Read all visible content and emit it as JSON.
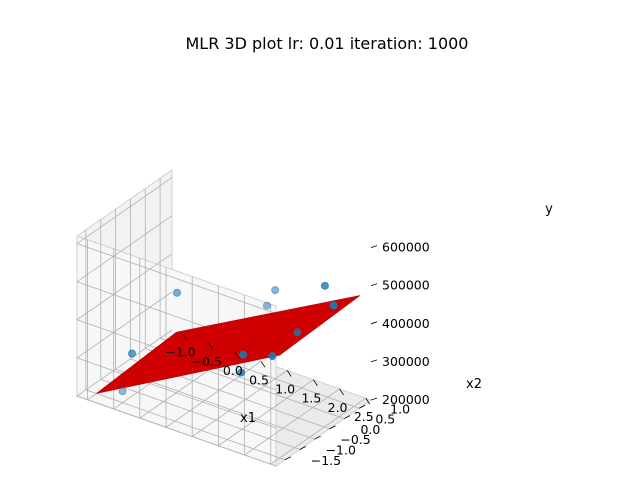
{
  "chart_data": {
    "type": "scatter",
    "title": "MLR 3D plot lr: 0.01 iteration: 1000",
    "xlabel": "x1",
    "ylabel": "x2",
    "zlabel": "y",
    "xlim": [
      -1.2,
      2.6
    ],
    "ylim": [
      -1.8,
      1.4
    ],
    "zlim": [
      200000,
      620000
    ],
    "x_ticks": [
      "−1.0",
      "−0.5",
      "0.0",
      "0.5",
      "1.0",
      "1.5",
      "2.0",
      "2.5"
    ],
    "y_ticks": [
      "−1.5",
      "−1.0",
      "−0.5",
      "0.0",
      "0.5",
      "1.0"
    ],
    "z_ticks": [
      "200000",
      "300000",
      "400000",
      "500000",
      "600000"
    ],
    "grid": true,
    "points": [
      {
        "x1": -1.0,
        "x2": -0.3,
        "y": 240000
      },
      {
        "x1": -0.5,
        "x2": -1.5,
        "y": 230000
      },
      {
        "x1": 0.5,
        "x2": 0.8,
        "y": 250000
      },
      {
        "x1": 1.0,
        "x2": 0.9,
        "y": 265000
      },
      {
        "x1": 0.8,
        "x2": 0.2,
        "y": 250000
      },
      {
        "x1": 0.2,
        "x2": -0.9,
        "y": 490000
      },
      {
        "x1": 2.0,
        "x2": 1.2,
        "y": 430000
      },
      {
        "x1": 2.1,
        "x2": -0.2,
        "y": 440000
      },
      {
        "x1": 2.4,
        "x2": 0.2,
        "y": 555000
      },
      {
        "x1": 2.2,
        "x2": -1.4,
        "y": 580000
      },
      {
        "x1": 2.3,
        "x2": -1.3,
        "y": 620000
      }
    ],
    "regression_surface": {
      "color": "#cc0000",
      "corners": [
        {
          "x1": -1.0,
          "x2": -1.5,
          "y": 200000
        },
        {
          "x1": 2.5,
          "x2": -1.5,
          "y": 470000
        },
        {
          "x1": 2.5,
          "x2": 1.2,
          "y": 480000
        },
        {
          "x1": -1.0,
          "x2": 1.2,
          "y": 215000
        }
      ]
    },
    "colors": {
      "points": "#1f77b4",
      "surface": "#d00000"
    }
  }
}
